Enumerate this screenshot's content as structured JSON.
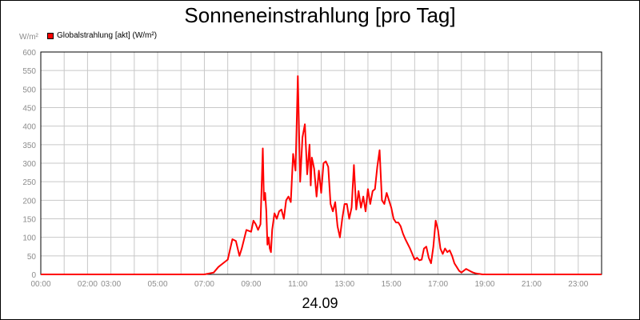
{
  "chart_data": {
    "type": "line",
    "title": "Sonneneinstrahlung [pro Tag]",
    "ylabel": "W/m²",
    "xlabel": "24.09",
    "ylim": [
      0,
      600
    ],
    "xlim_hours": [
      0,
      24
    ],
    "grid": true,
    "legend_placement": "top-left",
    "y_ticks": [
      "0",
      "50",
      "100",
      "150",
      "200",
      "250",
      "300",
      "350",
      "400",
      "450",
      "500",
      "550",
      "600"
    ],
    "x_ticks": [
      {
        "label": "00:00",
        "hour": 0
      },
      {
        "label": "02:00",
        "hour": 2
      },
      {
        "label": "03:00",
        "hour": 3
      },
      {
        "label": "05:00",
        "hour": 5
      },
      {
        "label": "07:00",
        "hour": 7
      },
      {
        "label": "09:00",
        "hour": 9
      },
      {
        "label": "11:00",
        "hour": 11
      },
      {
        "label": "13:00",
        "hour": 13
      },
      {
        "label": "15:00",
        "hour": 15
      },
      {
        "label": "17:00",
        "hour": 17
      },
      {
        "label": "19:00",
        "hour": 19
      },
      {
        "label": "21:00",
        "hour": 21
      },
      {
        "label": "23:00",
        "hour": 23
      }
    ],
    "series": [
      {
        "name": "Globalstrahlung [akt] (W/m²)",
        "color": "#ff0000",
        "x": [
          0,
          7.0,
          7.4,
          7.6,
          7.8,
          8.0,
          8.2,
          8.35,
          8.5,
          8.6,
          8.8,
          9.0,
          9.1,
          9.2,
          9.3,
          9.4,
          9.5,
          9.55,
          9.6,
          9.65,
          9.7,
          9.75,
          9.8,
          9.85,
          9.9,
          10.0,
          10.1,
          10.2,
          10.3,
          10.4,
          10.5,
          10.6,
          10.7,
          10.8,
          10.9,
          10.95,
          11.0,
          11.1,
          11.2,
          11.3,
          11.4,
          11.5,
          11.55,
          11.6,
          11.65,
          11.7,
          11.8,
          11.9,
          12.0,
          12.1,
          12.2,
          12.3,
          12.4,
          12.5,
          12.6,
          12.7,
          12.8,
          12.9,
          13.0,
          13.1,
          13.2,
          13.3,
          13.4,
          13.5,
          13.6,
          13.7,
          13.8,
          13.9,
          14.0,
          14.1,
          14.2,
          14.3,
          14.4,
          14.5,
          14.6,
          14.7,
          14.8,
          14.9,
          15.0,
          15.1,
          15.2,
          15.3,
          15.4,
          15.5,
          15.6,
          15.8,
          16.0,
          16.1,
          16.2,
          16.3,
          16.4,
          16.5,
          16.6,
          16.7,
          16.8,
          16.9,
          17.0,
          17.1,
          17.2,
          17.3,
          17.4,
          17.5,
          17.6,
          17.7,
          17.8,
          17.9,
          18.0,
          18.2,
          18.4,
          18.5,
          18.6,
          18.7,
          18.8,
          18.9,
          19.0,
          19.2,
          19.4,
          24.0
        ],
        "values": [
          0,
          0,
          5,
          20,
          30,
          40,
          95,
          90,
          50,
          70,
          120,
          115,
          145,
          135,
          120,
          135,
          340,
          200,
          220,
          170,
          80,
          100,
          70,
          60,
          120,
          165,
          150,
          170,
          175,
          150,
          200,
          210,
          195,
          325,
          280,
          400,
          535,
          250,
          370,
          405,
          270,
          350,
          240,
          315,
          300,
          285,
          210,
          280,
          220,
          300,
          305,
          290,
          190,
          170,
          195,
          130,
          100,
          150,
          190,
          190,
          150,
          180,
          295,
          175,
          225,
          180,
          210,
          170,
          230,
          190,
          225,
          230,
          290,
          335,
          200,
          190,
          220,
          200,
          180,
          150,
          140,
          140,
          130,
          110,
          95,
          70,
          40,
          45,
          38,
          40,
          70,
          75,
          45,
          30,
          75,
          145,
          120,
          70,
          55,
          70,
          60,
          65,
          50,
          30,
          20,
          10,
          5,
          15,
          8,
          5,
          3,
          2,
          1,
          0,
          0,
          0,
          0,
          0
        ]
      }
    ]
  }
}
